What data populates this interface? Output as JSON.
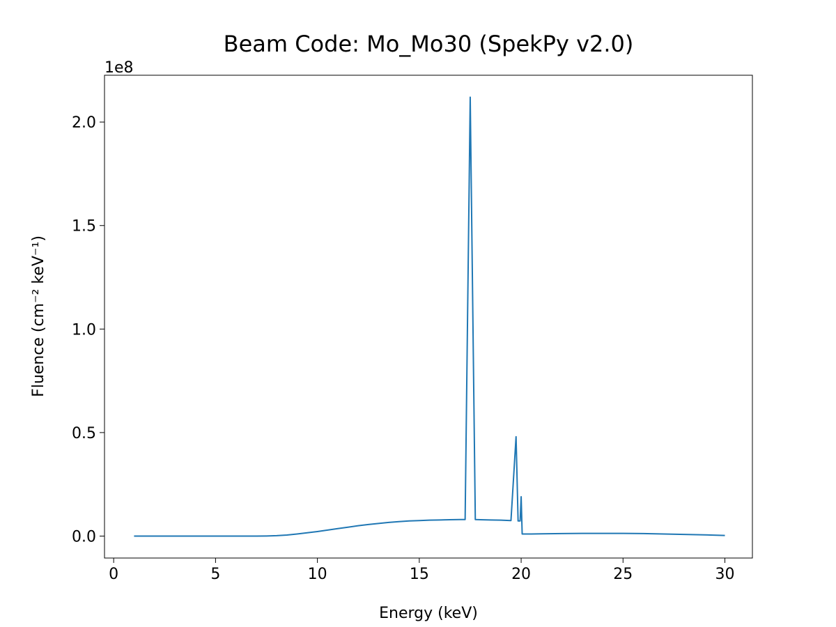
{
  "chart_data": {
    "type": "line",
    "title": "Beam Code: Mo_Mo30 (SpekPy v2.0)",
    "xlabel": "Energy (keV)",
    "ylabel": "Fluence (cm⁻² keV⁻¹)",
    "y_offset_label": "1e8",
    "xlim": [
      -0.45,
      31.35
    ],
    "ylim": [
      -0.106,
      2.226
    ],
    "x_ticks": [
      0,
      5,
      10,
      15,
      20,
      25,
      30
    ],
    "x_tick_labels": [
      "0",
      "5",
      "10",
      "15",
      "20",
      "25",
      "30"
    ],
    "y_ticks": [
      0.0,
      0.5,
      1.0,
      1.5,
      2.0
    ],
    "y_tick_labels": [
      "0.0",
      "0.5",
      "1.0",
      "1.5",
      "2.0"
    ],
    "grid": false,
    "line_color": "#1f77b4",
    "series": [
      {
        "x": [
          1.0,
          2.0,
          3.0,
          4.0,
          5.0,
          6.0,
          7.0,
          7.5,
          8.0,
          8.5,
          9.0,
          9.5,
          10.0,
          10.5,
          11.0,
          11.5,
          12.0,
          12.5,
          13.0,
          13.5,
          14.0,
          14.5,
          15.0,
          15.5,
          16.0,
          16.5,
          17.0,
          17.25,
          17.5,
          17.75,
          18.0,
          18.5,
          19.0,
          19.5,
          19.75,
          19.85,
          19.95,
          20.0,
          20.05,
          20.5,
          21.0,
          22.0,
          23.0,
          24.0,
          25.0,
          26.0,
          27.0,
          28.0,
          29.0,
          30.0
        ],
        "y": [
          0.0,
          0.0,
          0.0,
          0.0,
          0.0,
          0.0,
          0.0,
          0.0005,
          0.002,
          0.005,
          0.01,
          0.016,
          0.022,
          0.029,
          0.036,
          0.043,
          0.05,
          0.056,
          0.061,
          0.066,
          0.07,
          0.073,
          0.075,
          0.077,
          0.078,
          0.079,
          0.08,
          0.08,
          2.12,
          0.08,
          0.079,
          0.078,
          0.077,
          0.075,
          0.48,
          0.073,
          0.073,
          0.19,
          0.01,
          0.01,
          0.011,
          0.012,
          0.013,
          0.013,
          0.013,
          0.012,
          0.01,
          0.008,
          0.006,
          0.003
        ]
      }
    ]
  }
}
